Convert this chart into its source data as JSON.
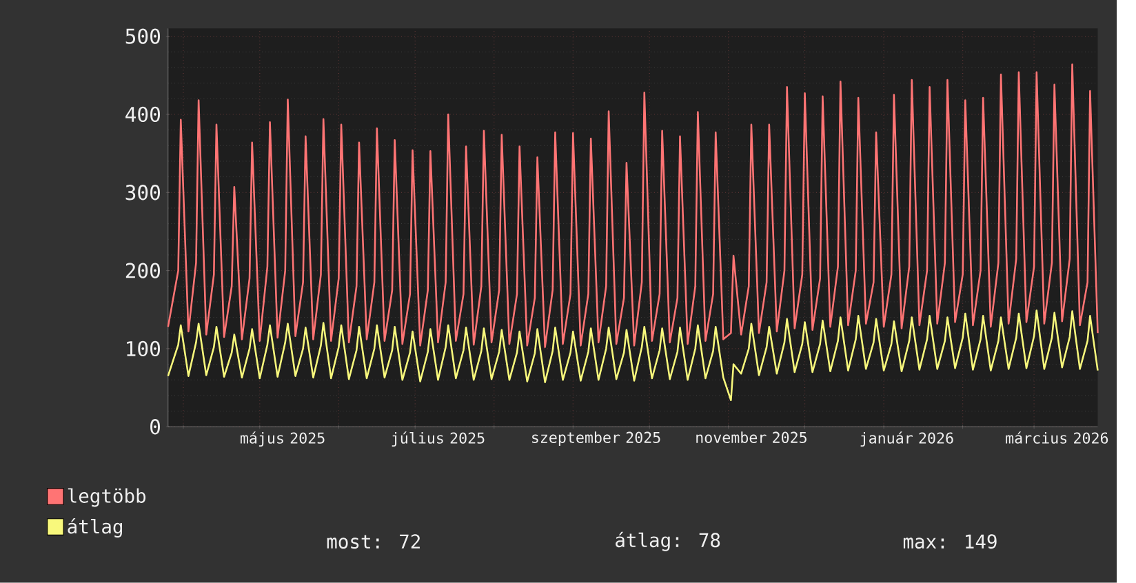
{
  "chart_data": {
    "type": "line",
    "x": [
      "2025-03-26",
      "2025-03-30",
      "2025-03-31",
      "2025-04-03",
      "2025-04-06",
      "2025-04-07",
      "2025-04-10",
      "2025-04-13",
      "2025-04-14",
      "2025-04-17",
      "2025-04-20",
      "2025-04-21",
      "2025-04-24",
      "2025-04-27",
      "2025-04-28",
      "2025-05-01",
      "2025-05-04",
      "2025-05-05",
      "2025-05-08",
      "2025-05-11",
      "2025-05-12",
      "2025-05-15",
      "2025-05-18",
      "2025-05-19",
      "2025-05-22",
      "2025-05-25",
      "2025-05-26",
      "2025-05-29",
      "2025-06-01",
      "2025-06-02",
      "2025-06-05",
      "2025-06-08",
      "2025-06-09",
      "2025-06-12",
      "2025-06-15",
      "2025-06-16",
      "2025-06-19",
      "2025-06-22",
      "2025-06-23",
      "2025-06-26",
      "2025-06-29",
      "2025-06-30",
      "2025-07-03",
      "2025-07-06",
      "2025-07-07",
      "2025-07-10",
      "2025-07-13",
      "2025-07-14",
      "2025-07-17",
      "2025-07-20",
      "2025-07-21",
      "2025-07-24",
      "2025-07-27",
      "2025-07-28",
      "2025-07-31",
      "2025-08-03",
      "2025-08-04",
      "2025-08-07",
      "2025-08-10",
      "2025-08-11",
      "2025-08-14",
      "2025-08-17",
      "2025-08-18",
      "2025-08-21",
      "2025-08-24",
      "2025-08-25",
      "2025-08-28",
      "2025-08-31",
      "2025-09-01",
      "2025-09-04",
      "2025-09-07",
      "2025-09-08",
      "2025-09-11",
      "2025-09-14",
      "2025-09-15",
      "2025-09-18",
      "2025-09-21",
      "2025-09-22",
      "2025-09-25",
      "2025-09-28",
      "2025-09-29",
      "2025-10-02",
      "2025-10-05",
      "2025-10-06",
      "2025-10-09",
      "2025-10-12",
      "2025-10-13",
      "2025-10-16",
      "2025-10-19",
      "2025-10-20",
      "2025-10-23",
      "2025-10-26",
      "2025-10-27",
      "2025-10-30",
      "2025-11-02",
      "2025-11-03",
      "2025-11-06",
      "2025-11-09",
      "2025-11-10",
      "2025-11-13",
      "2025-11-16",
      "2025-11-17",
      "2025-11-20",
      "2025-11-23",
      "2025-11-24",
      "2025-11-27",
      "2025-11-30",
      "2025-12-01",
      "2025-12-04",
      "2025-12-07",
      "2025-12-08",
      "2025-12-11",
      "2025-12-14",
      "2025-12-15",
      "2025-12-18",
      "2025-12-21",
      "2025-12-22",
      "2025-12-25",
      "2025-12-28",
      "2025-12-29",
      "2026-01-01",
      "2026-01-04",
      "2026-01-05",
      "2026-01-08",
      "2026-01-11",
      "2026-01-12",
      "2026-01-15",
      "2026-01-18",
      "2026-01-19",
      "2026-01-22",
      "2026-01-25",
      "2026-01-26",
      "2026-01-29",
      "2026-02-01",
      "2026-02-02",
      "2026-02-05",
      "2026-02-08",
      "2026-02-09",
      "2026-02-12",
      "2026-02-15",
      "2026-02-16",
      "2026-02-19",
      "2026-02-22",
      "2026-02-23",
      "2026-02-26",
      "2026-03-01",
      "2026-03-02",
      "2026-03-05",
      "2026-03-08",
      "2026-03-09",
      "2026-03-12",
      "2026-03-15",
      "2026-03-16",
      "2026-03-19",
      "2026-03-22",
      "2026-03-23",
      "2026-03-26"
    ],
    "series": [
      {
        "name": "legtöbb",
        "color": "#ff7474",
        "values": [
          128,
          200,
          393,
          122,
          210,
          418,
          118,
          195,
          387,
          115,
          180,
          307,
          112,
          190,
          364,
          110,
          205,
          390,
          114,
          200,
          419,
          116,
          185,
          372,
          112,
          195,
          394,
          110,
          190,
          387,
          108,
          180,
          364,
          112,
          185,
          382,
          110,
          175,
          367,
          106,
          170,
          354,
          104,
          175,
          353,
          108,
          185,
          400,
          110,
          170,
          359,
          105,
          180,
          379,
          108,
          175,
          374,
          106,
          170,
          359,
          104,
          165,
          345,
          102,
          175,
          377,
          106,
          170,
          376,
          104,
          170,
          369,
          108,
          180,
          404,
          106,
          165,
          338,
          104,
          185,
          428,
          110,
          170,
          379,
          108,
          165,
          372,
          106,
          180,
          403,
          110,
          170,
          377,
          112,
          120,
          219,
          118,
          180,
          387,
          120,
          185,
          387,
          122,
          200,
          435,
          126,
          195,
          427,
          124,
          190,
          423,
          128,
          205,
          442,
          130,
          200,
          421,
          132,
          185,
          377,
          128,
          195,
          425,
          126,
          205,
          444,
          130,
          200,
          435,
          132,
          210,
          444,
          134,
          195,
          418,
          130,
          200,
          421,
          128,
          210,
          451,
          132,
          215,
          454,
          134,
          205,
          454,
          132,
          210,
          438,
          135,
          215,
          464,
          130,
          185,
          430,
          120
        ]
      },
      {
        "name": "átlag",
        "color": "#f8f87c",
        "values": [
          65,
          105,
          130,
          65,
          108,
          132,
          66,
          102,
          128,
          64,
          95,
          118,
          63,
          100,
          125,
          62,
          105,
          130,
          64,
          108,
          132,
          65,
          100,
          127,
          63,
          104,
          133,
          62,
          102,
          130,
          61,
          98,
          128,
          62,
          100,
          130,
          63,
          98,
          128,
          60,
          95,
          122,
          58,
          96,
          125,
          60,
          102,
          130,
          62,
          98,
          127,
          60,
          97,
          126,
          61,
          96,
          124,
          60,
          95,
          122,
          58,
          94,
          125,
          57,
          97,
          127,
          60,
          95,
          122,
          59,
          96,
          126,
          60,
          100,
          127,
          61,
          95,
          124,
          59,
          102,
          128,
          62,
          98,
          126,
          61,
          96,
          127,
          60,
          100,
          130,
          62,
          97,
          128,
          63,
          34,
          80,
          68,
          100,
          132,
          66,
          102,
          128,
          68,
          108,
          138,
          70,
          106,
          134,
          70,
          106,
          136,
          71,
          110,
          140,
          72,
          112,
          142,
          74,
          108,
          138,
          72,
          106,
          135,
          71,
          110,
          140,
          73,
          112,
          142,
          74,
          110,
          140,
          75,
          114,
          145,
          73,
          112,
          142,
          72,
          110,
          140,
          74,
          114,
          145,
          75,
          116,
          149,
          74,
          114,
          146,
          76,
          115,
          148,
          74,
          110,
          142,
          72
        ]
      }
    ],
    "xlim": [
      "2025-03-26",
      "2026-03-26"
    ],
    "xticks": [
      {
        "value": "2025-04-01",
        "label": null
      },
      {
        "value": "2025-05-01",
        "label": null
      },
      {
        "value": "2025-05-10",
        "label": "május 2025"
      },
      {
        "value": "2025-06-01",
        "label": null
      },
      {
        "value": "2025-07-01",
        "label": null
      },
      {
        "value": "2025-07-10",
        "label": "július 2025"
      },
      {
        "value": "2025-08-01",
        "label": null
      },
      {
        "value": "2025-09-01",
        "label": null
      },
      {
        "value": "2025-09-10",
        "label": "szeptember 2025"
      },
      {
        "value": "2025-10-01",
        "label": null
      },
      {
        "value": "2025-11-01",
        "label": null
      },
      {
        "value": "2025-11-10",
        "label": "november 2025"
      },
      {
        "value": "2025-12-01",
        "label": null
      },
      {
        "value": "2026-01-01",
        "label": null
      },
      {
        "value": "2026-01-10",
        "label": "január 2026"
      },
      {
        "value": "2026-02-01",
        "label": null
      },
      {
        "value": "2026-03-01",
        "label": null
      },
      {
        "value": "2026-03-10",
        "label": "március 2026"
      }
    ],
    "ylim": [
      0,
      510
    ],
    "yticks": [
      0,
      100,
      200,
      300,
      400,
      500
    ],
    "grid": true,
    "legend": "bottom left",
    "annotations": [
      "most: 72",
      "átlag: 78",
      "max: 149"
    ]
  }
}
